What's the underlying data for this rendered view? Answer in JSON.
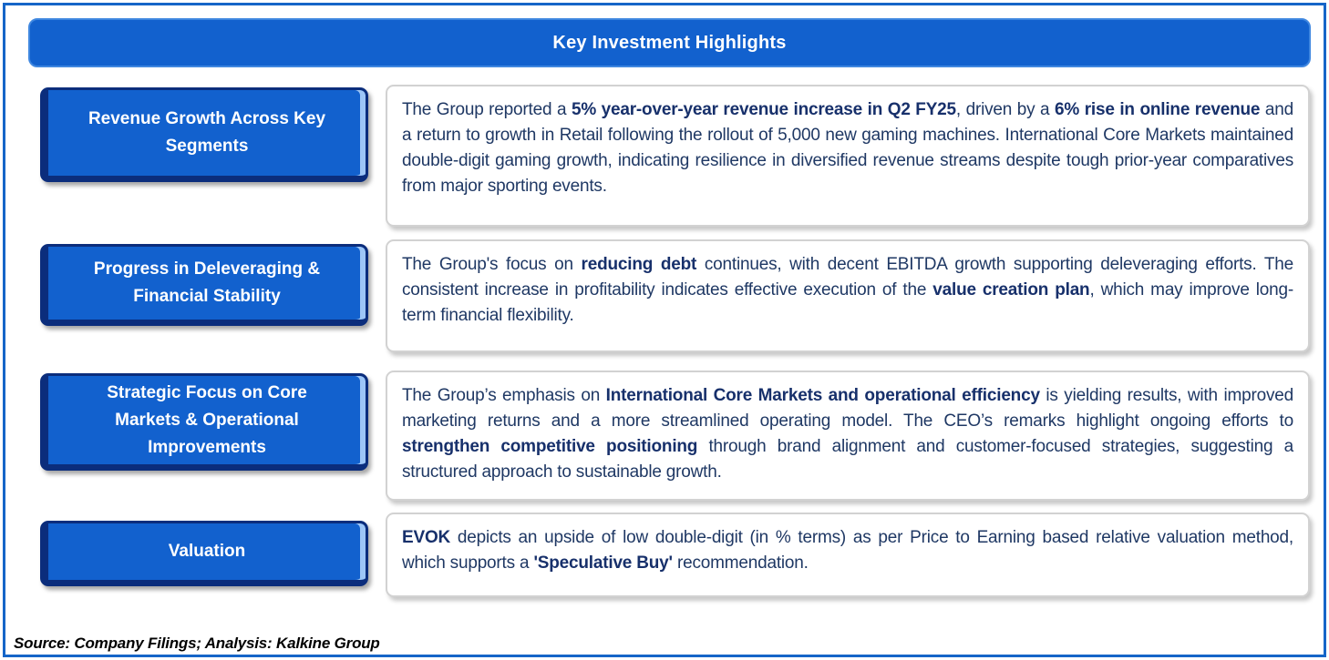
{
  "page": {
    "title": "Key Investment Highlights",
    "source_note": "Source: Company Filings; Analysis: Kalkine Group"
  },
  "colors": {
    "accent_blue": "#1261ce",
    "bevel_dark": "#0b2d7c",
    "bevel_highlight": "#9dc6f7",
    "page_border": "#1565c8",
    "body_text_navy": "#1f3864"
  },
  "rows": [
    {
      "label": "Revenue Growth Across Key Segments",
      "segments": [
        {
          "text": "The Group reported a ",
          "bold": false
        },
        {
          "text": "5% year-over-year revenue increase in Q2 FY25",
          "bold": true
        },
        {
          "text": ", driven by a ",
          "bold": false
        },
        {
          "text": "6% rise in online revenue",
          "bold": true
        },
        {
          "text": " and a return to growth in Retail following the rollout of 5,000 new gaming machines. International Core Markets maintained double-digit gaming growth, indicating resilience in diversified revenue streams despite tough prior-year comparatives from major sporting events.",
          "bold": false
        }
      ]
    },
    {
      "label": "Progress in Deleveraging & Financial Stability",
      "segments": [
        {
          "text": "The Group's focus on ",
          "bold": false
        },
        {
          "text": "reducing debt",
          "bold": true
        },
        {
          "text": " continues, with decent EBITDA growth supporting deleveraging efforts. The consistent increase in profitability indicates effective execution of the ",
          "bold": false
        },
        {
          "text": "value creation plan",
          "bold": true
        },
        {
          "text": ", which may improve long-term financial flexibility.",
          "bold": false
        }
      ]
    },
    {
      "label": "Strategic Focus on Core Markets & Operational Improvements",
      "segments": [
        {
          "text": "The Group’s emphasis on ",
          "bold": false
        },
        {
          "text": "International Core Markets and operational efficiency",
          "bold": true
        },
        {
          "text": " is yielding results, with improved marketing returns and a more streamlined operating model. The CEO’s remarks highlight ongoing efforts to ",
          "bold": false
        },
        {
          "text": "strengthen competitive positioning",
          "bold": true
        },
        {
          "text": " through brand alignment and customer-focused strategies, suggesting a structured approach to sustainable growth.",
          "bold": false
        }
      ]
    },
    {
      "label": "Valuation",
      "segments": [
        {
          "text": "EVOK",
          "bold": true
        },
        {
          "text": " depicts an upside of low double-digit (in % terms) as per Price to Earning based relative valuation method, which supports a ",
          "bold": false
        },
        {
          "text": "'Speculative Buy'",
          "bold": true
        },
        {
          "text": " recommendation.",
          "bold": false
        }
      ]
    }
  ]
}
